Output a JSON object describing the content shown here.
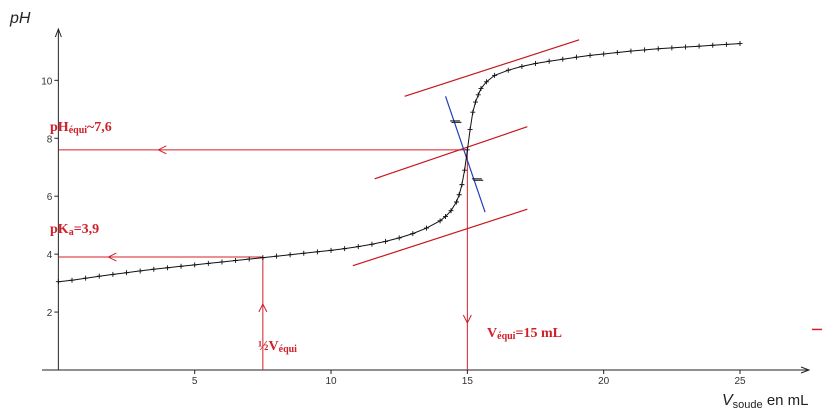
{
  "chart_data": {
    "type": "line",
    "title": "",
    "ylabel": "pH",
    "xlabel_main": "V",
    "xlabel_sub": "soude",
    "xlabel_suffix": " en mL",
    "xlim": [
      -0.6,
      27.2
    ],
    "ylim": [
      0,
      11.6
    ],
    "x_ticks": [
      5,
      10,
      15,
      20,
      25
    ],
    "y_ticks": [
      2,
      4,
      6,
      8,
      10
    ],
    "grid": false,
    "colors": {
      "curve": "#111111",
      "annotation": "#d0202a",
      "tangent": "#c8161d",
      "normal": "#1f3fbf",
      "axis": "#222222"
    },
    "series": [
      {
        "x": [
          0,
          0.5,
          1,
          1.5,
          2,
          2.5,
          3,
          3.5,
          4,
          4.5,
          5,
          5.5,
          6,
          6.5,
          7,
          7.5,
          8,
          8.5,
          9,
          9.5,
          10,
          10.5,
          11,
          11.5,
          12,
          12.5,
          13,
          13.5,
          14,
          14.2,
          14.4,
          14.6,
          14.7,
          14.8,
          14.9,
          15,
          15.1,
          15.2,
          15.3,
          15.4,
          15.5,
          15.7,
          16,
          16.5,
          17,
          17.5,
          18,
          18.5,
          19,
          19.5,
          20,
          20.5,
          21,
          21.5,
          22,
          22.5,
          23,
          23.5,
          24,
          24.5,
          25
        ],
        "y": [
          3.05,
          3.1,
          3.17,
          3.24,
          3.3,
          3.36,
          3.42,
          3.48,
          3.53,
          3.58,
          3.63,
          3.68,
          3.73,
          3.78,
          3.83,
          3.88,
          3.93,
          3.98,
          4.03,
          4.08,
          4.13,
          4.19,
          4.26,
          4.34,
          4.44,
          4.56,
          4.71,
          4.9,
          5.15,
          5.3,
          5.5,
          5.8,
          6.05,
          6.4,
          6.9,
          7.6,
          8.3,
          8.9,
          9.25,
          9.5,
          9.72,
          9.95,
          10.17,
          10.35,
          10.48,
          10.58,
          10.66,
          10.73,
          10.8,
          10.86,
          10.91,
          10.96,
          11.01,
          11.05,
          11.09,
          11.12,
          11.15,
          11.18,
          11.21,
          11.24,
          11.27
        ]
      }
    ],
    "tangents": [
      {
        "x": [
          10.8,
          17.2
        ],
        "y": [
          3.6,
          5.55
        ]
      },
      {
        "x": [
          12.7,
          19.1
        ],
        "y": [
          9.45,
          11.4
        ]
      },
      {
        "x": [
          11.6,
          17.2
        ],
        "y": [
          6.6,
          8.4
        ]
      }
    ],
    "normal_line": {
      "x": [
        14.2,
        15.65
      ],
      "y": [
        9.45,
        5.45
      ]
    },
    "equivalence": {
      "x": 15,
      "y": 7.6
    },
    "half_equivalence": {
      "x": 7.5,
      "y": 3.9
    },
    "annotations": {
      "ph_equi_main": "pH",
      "ph_equi_sub": "équi",
      "ph_equi_value": "~7,6",
      "pka_main": "pK",
      "pka_sub": "a",
      "pka_value": "=3,9",
      "half_v_main": "½V",
      "half_v_sub": "équi",
      "v_equi_main": "V",
      "v_equi_sub": "équi",
      "v_equi_value": "=15 mL"
    }
  }
}
